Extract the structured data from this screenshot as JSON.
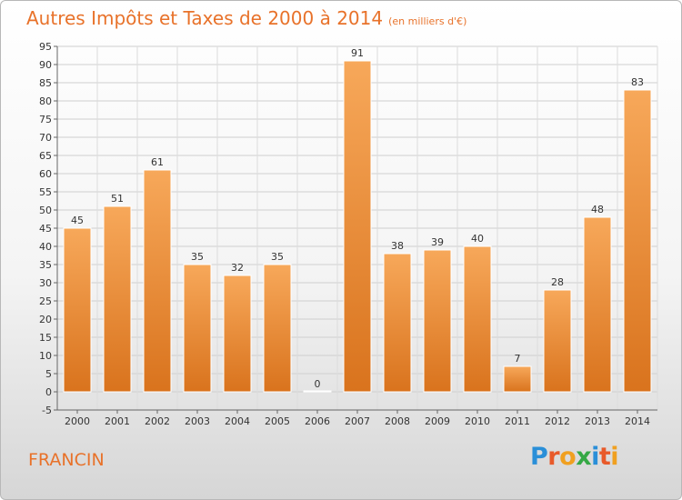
{
  "chart_data": {
    "type": "bar",
    "title": "Autres Impôts et Taxes de 2000 à 2014",
    "unit_note": "(en milliers d'€)",
    "categories": [
      "2000",
      "2001",
      "2002",
      "2003",
      "2004",
      "2005",
      "2006",
      "2007",
      "2008",
      "2009",
      "2010",
      "2011",
      "2012",
      "2013",
      "2014"
    ],
    "values": [
      45,
      51,
      61,
      35,
      32,
      35,
      0,
      91,
      38,
      39,
      40,
      7,
      28,
      48,
      83
    ],
    "ylim": [
      -5,
      95
    ],
    "ytick_step": 5,
    "grid": true,
    "bar_color_top": "#f7a85a",
    "bar_color_bottom": "#d9731d"
  },
  "footer": {
    "place": "FRANCIN",
    "logo_letters": [
      "P",
      "r",
      "o",
      "x",
      "i",
      "t",
      "i"
    ]
  }
}
